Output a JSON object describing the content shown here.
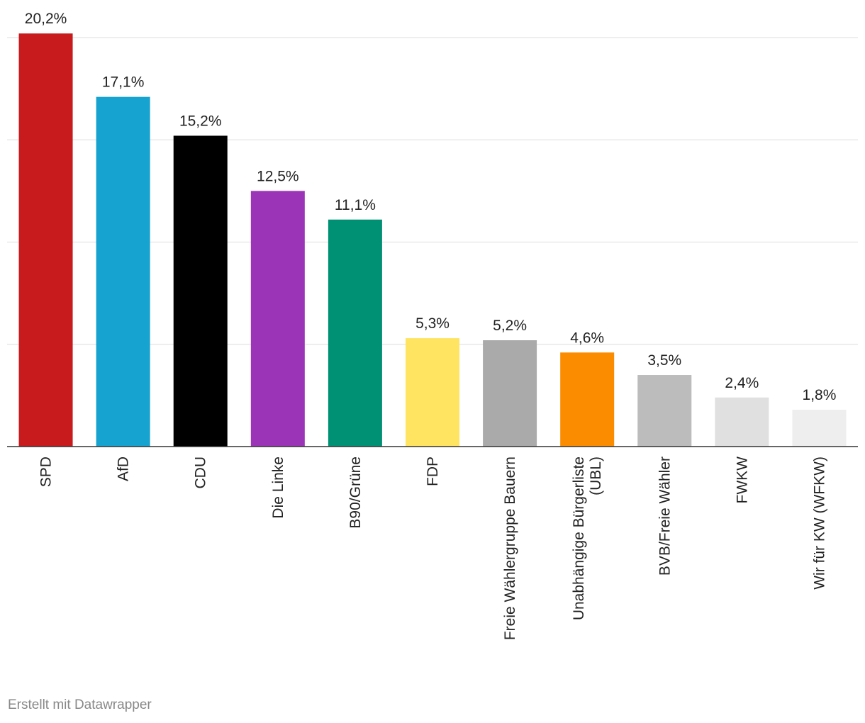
{
  "chart_data": {
    "type": "bar",
    "categories": [
      "SPD",
      "AfD",
      "CDU",
      "Die Linke",
      "B90/Grüne",
      "FDP",
      "Freie Wählergruppe Bauern",
      "Unabhängige Bürgerliste (UBL)",
      "BVB/Freie Wähler",
      "FWKW",
      "Wir für KW (WFKW)"
    ],
    "category_lines": [
      [
        "SPD"
      ],
      [
        "AfD"
      ],
      [
        "CDU"
      ],
      [
        "Die Linke"
      ],
      [
        "B90/Grüne"
      ],
      [
        "FDP"
      ],
      [
        "Freie Wählergruppe Bauern"
      ],
      [
        "Unabhängige Bürgerliste",
        "(UBL)"
      ],
      [
        "BVB/Freie Wähler"
      ],
      [
        "FWKW"
      ],
      [
        "Wir für KW (WFKW)"
      ]
    ],
    "values": [
      20.2,
      17.1,
      15.2,
      12.5,
      11.1,
      5.3,
      5.2,
      4.6,
      3.5,
      2.4,
      1.8
    ],
    "value_labels": [
      "20,2%",
      "17,1%",
      "15,2%",
      "12,5%",
      "11,1%",
      "5,3%",
      "5,2%",
      "4,6%",
      "3,5%",
      "2,4%",
      "1,8%"
    ],
    "colors": [
      "#c71b1e",
      "#17a3d0",
      "#000000",
      "#9b34b7",
      "#009174",
      "#ffe462",
      "#aaaaaa",
      "#fb8c00",
      "#bcbcbc",
      "#e0e0e0",
      "#eeeeee"
    ],
    "ylim": [
      0,
      20
    ],
    "gridlines": [
      5,
      10,
      15,
      20
    ],
    "grid": true,
    "legend": "none"
  },
  "footer": {
    "credit": "Erstellt mit Datawrapper"
  }
}
